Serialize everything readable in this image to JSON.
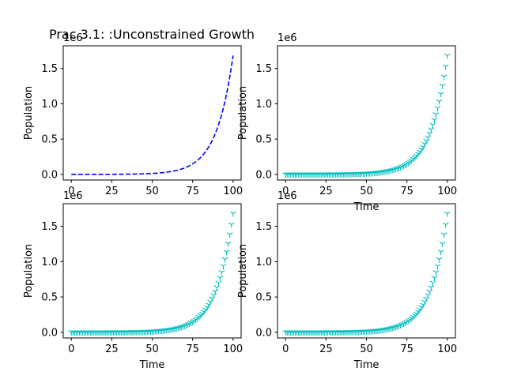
{
  "figure": {
    "title": "Prac 3.1: :Unconstrained Growth"
  },
  "chart_data": [
    {
      "type": "line",
      "panel": "top-left",
      "title": "",
      "xlabel": "",
      "ylabel": "Population",
      "offset_text": "1e6",
      "xlim": [
        -5,
        105
      ],
      "ylim": [
        -0.08,
        1.82
      ],
      "xticks": [
        0,
        25,
        50,
        75,
        100
      ],
      "yticks": [
        0.0,
        0.5,
        1.0,
        1.5
      ],
      "yscale_multiplier": 1000000,
      "series": [
        {
          "style": "dashed",
          "marker": "none",
          "color": "#0000ff",
          "model": {
            "P0": 100,
            "rate": 0.0973,
            "t_start": 0,
            "t_end": 100
          }
        }
      ]
    },
    {
      "type": "scatter",
      "panel": "top-right",
      "title": "",
      "xlabel": "Time",
      "ylabel": "Population",
      "offset_text": "1e6",
      "xlim": [
        -5,
        105
      ],
      "ylim": [
        -0.08,
        1.82
      ],
      "xticks": [
        0,
        25,
        50,
        75,
        100
      ],
      "yticks": [
        0.0,
        0.5,
        1.0,
        1.5
      ],
      "yscale_multiplier": 1000000,
      "series": [
        {
          "style": "none",
          "marker": "tri_down",
          "color": "#00bfbf",
          "model": {
            "P0": 100,
            "rate": 0.0973,
            "t_start": 0,
            "t_end": 100
          }
        }
      ]
    },
    {
      "type": "scatter",
      "panel": "bottom-left",
      "title": "",
      "xlabel": "Time",
      "ylabel": "Population",
      "offset_text": "1e6",
      "xlim": [
        -5,
        105
      ],
      "ylim": [
        -0.08,
        1.82
      ],
      "xticks": [
        0,
        25,
        50,
        75,
        100
      ],
      "yticks": [
        0.0,
        0.5,
        1.0,
        1.5
      ],
      "yscale_multiplier": 1000000,
      "series": [
        {
          "style": "none",
          "marker": "tri_down",
          "color": "#00bfbf",
          "model": {
            "P0": 100,
            "rate": 0.0973,
            "t_start": 0,
            "t_end": 100
          }
        }
      ]
    },
    {
      "type": "scatter",
      "panel": "bottom-right",
      "title": "",
      "xlabel": "Time",
      "ylabel": "Population",
      "offset_text": "1e6",
      "xlim": [
        -5,
        105
      ],
      "ylim": [
        -0.08,
        1.82
      ],
      "xticks": [
        0,
        25,
        50,
        75,
        100
      ],
      "yticks": [
        0.0,
        0.5,
        1.0,
        1.5
      ],
      "yscale_multiplier": 1000000,
      "series": [
        {
          "style": "none",
          "marker": "tri_down",
          "color": "#00bfbf",
          "model": {
            "P0": 100,
            "rate": 0.0973,
            "t_start": 0,
            "t_end": 100
          }
        }
      ]
    }
  ]
}
